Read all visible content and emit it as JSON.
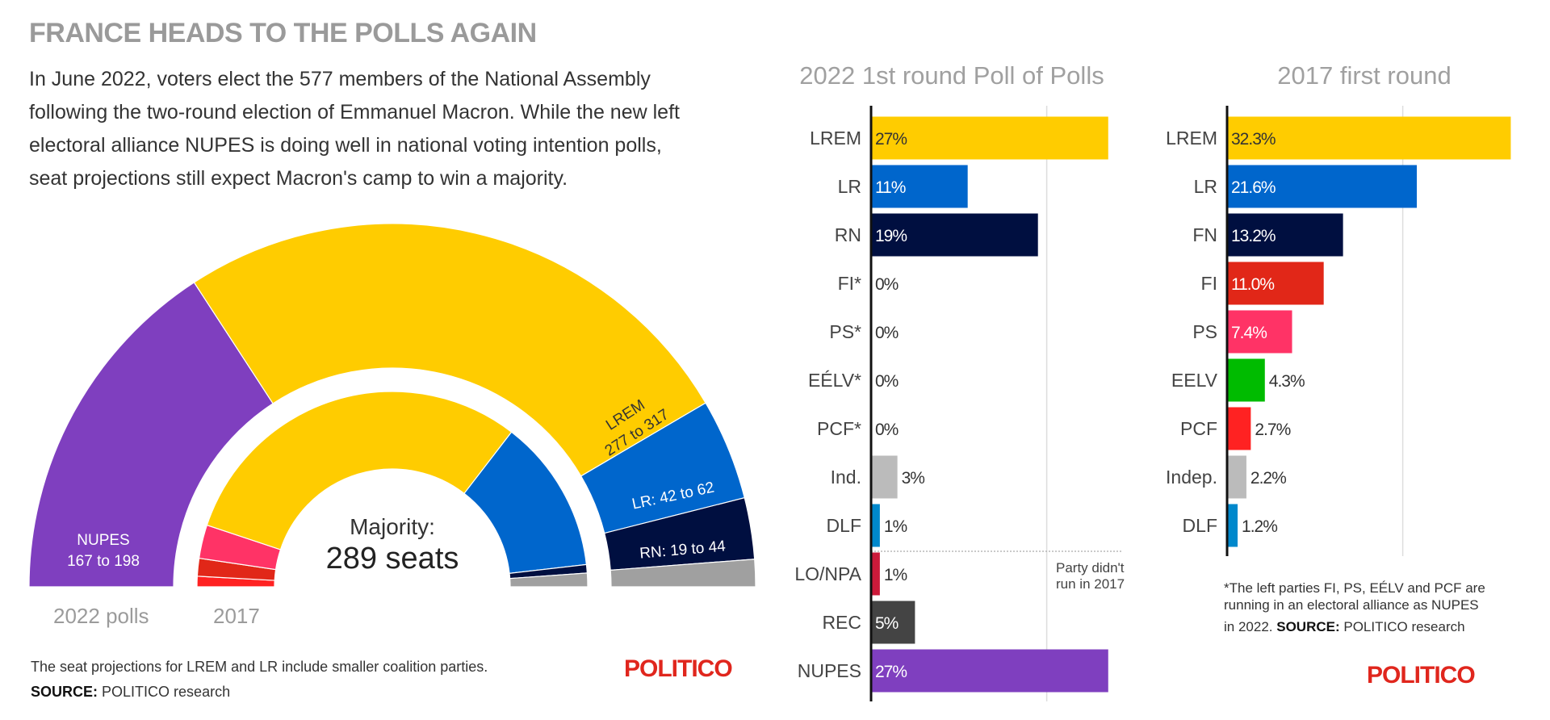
{
  "header": {
    "title": "FRANCE HEADS TO THE POLLS AGAIN",
    "intro_lines": [
      "In June 2022, voters elect the 577 members of the National Assembly",
      "following the two-round election of Emmanuel Macron. While the new left",
      "electoral alliance NUPES is doing well in national voting intention polls,",
      "seat projections still expect Macron's camp to win a majority."
    ]
  },
  "hemicycle": {
    "majority_label": "Majority:",
    "majority_value": "289 seats",
    "ring_labels": {
      "outer": "2022 polls",
      "inner": "2017"
    },
    "footnote": "The seat projections for LREM and LR include smaller coalition parties.",
    "source_label": "SOURCE:",
    "source_text": "POLITICO research",
    "logo": "POLITICO"
  },
  "right_panel": {
    "footnote_lines": [
      "*The left parties FI, PS, EÉLV and PCF are",
      "running in an electoral alliance as NUPES",
      "in 2022."
    ],
    "source_label": "SOURCE:",
    "source_text": "POLITICO research",
    "logo": "POLITICO"
  },
  "chart_data": [
    {
      "type": "pie",
      "subtype": "hemicycle",
      "title": "National Assembly seats",
      "total_seats": 577,
      "majority": 289,
      "rings": [
        {
          "name": "2022 polls",
          "segments": [
            {
              "party": "NUPES",
              "seats": 182.5,
              "range": "167 to 198",
              "label": "NUPES\n167 to 198",
              "color": "#7f3fbf"
            },
            {
              "party": "LREM",
              "seats": 297,
              "range": "277 to 317",
              "label": "LREM\n277 to 317",
              "color": "#ffcc00"
            },
            {
              "party": "LR",
              "seats": 52,
              "range": "42 to 62",
              "label": "LR: 42 to 62",
              "color": "#0066cc"
            },
            {
              "party": "RN",
              "seats": 31.5,
              "range": "19 to 44",
              "label": "RN: 19 to 44",
              "color": "#000f40"
            },
            {
              "party": "Other",
              "seats": 14,
              "label": "",
              "color": "#a0a0a0"
            }
          ]
        },
        {
          "name": "2017",
          "segments": [
            {
              "party": "PCF",
              "seats": 10,
              "color": "#ff2222"
            },
            {
              "party": "FI",
              "seats": 17,
              "color": "#e12718"
            },
            {
              "party": "PS",
              "seats": 32,
              "color": "#ff3366"
            },
            {
              "party": "LREM",
              "seats": 350,
              "color": "#ffcc00"
            },
            {
              "party": "LR",
              "seats": 147,
              "color": "#0066cc"
            },
            {
              "party": "FN",
              "seats": 8,
              "color": "#000f40"
            },
            {
              "party": "Other",
              "seats": 13,
              "color": "#a0a0a0"
            }
          ]
        }
      ]
    },
    {
      "type": "bar",
      "orientation": "horizontal",
      "title": "2022 1st round Poll of Polls",
      "unit": "%",
      "xlim": [
        0,
        27
      ],
      "gridlines": [
        20
      ],
      "categories": [
        "LREM",
        "LR",
        "RN",
        "FI*",
        "PS*",
        "EÉLV*",
        "PCF*",
        "Ind.",
        "DLF",
        "LO/NPA",
        "REC",
        "NUPES"
      ],
      "values": [
        27,
        11,
        19,
        0,
        0,
        0,
        0,
        3,
        1,
        1,
        5,
        27
      ],
      "labels": [
        "27%",
        "11%",
        "19%",
        "0%",
        "0%",
        "0%",
        "0%",
        "3%",
        "1%",
        "1%",
        "5%",
        "27%"
      ],
      "colors": [
        "#ffcc00",
        "#0066cc",
        "#000f40",
        "#e12718",
        "#ff3366",
        "#00bb00",
        "#ff2222",
        "#bbbbbb",
        "#0088cc",
        "#cc1a3a",
        "#444444",
        "#7f3fbf"
      ],
      "label_inside": [
        true,
        true,
        true,
        false,
        false,
        false,
        false,
        false,
        false,
        false,
        true,
        true
      ],
      "label_color": [
        "#333333",
        "#ffffff",
        "#ffffff",
        "#333333",
        "#333333",
        "#333333",
        "#333333",
        "#333333",
        "#333333",
        "#333333",
        "#ffffff",
        "#ffffff"
      ],
      "separator_before": "LO/NPA",
      "annotation": "Party didn't\nrun in 2017"
    },
    {
      "type": "bar",
      "orientation": "horizontal",
      "title": "2017 first round",
      "unit": "%",
      "xlim": [
        0,
        32.3
      ],
      "gridlines": [
        20
      ],
      "categories": [
        "LREM",
        "LR",
        "FN",
        "FI",
        "PS",
        "EELV",
        "PCF",
        "Indep.",
        "DLF"
      ],
      "values": [
        32.3,
        21.6,
        13.2,
        11.0,
        7.4,
        4.3,
        2.7,
        2.2,
        1.2
      ],
      "labels": [
        "32.3%",
        "21.6%",
        "13.2%",
        "11.0%",
        "7.4%",
        "4.3%",
        "2.7%",
        "2.2%",
        "1.2%"
      ],
      "colors": [
        "#ffcc00",
        "#0066cc",
        "#000f40",
        "#e12718",
        "#ff3366",
        "#00bb00",
        "#ff2222",
        "#bbbbbb",
        "#0088cc"
      ],
      "label_inside": [
        true,
        true,
        true,
        true,
        true,
        false,
        false,
        false,
        false
      ],
      "label_color": [
        "#333333",
        "#ffffff",
        "#ffffff",
        "#ffffff",
        "#ffffff",
        "#333333",
        "#333333",
        "#333333",
        "#333333"
      ]
    }
  ]
}
